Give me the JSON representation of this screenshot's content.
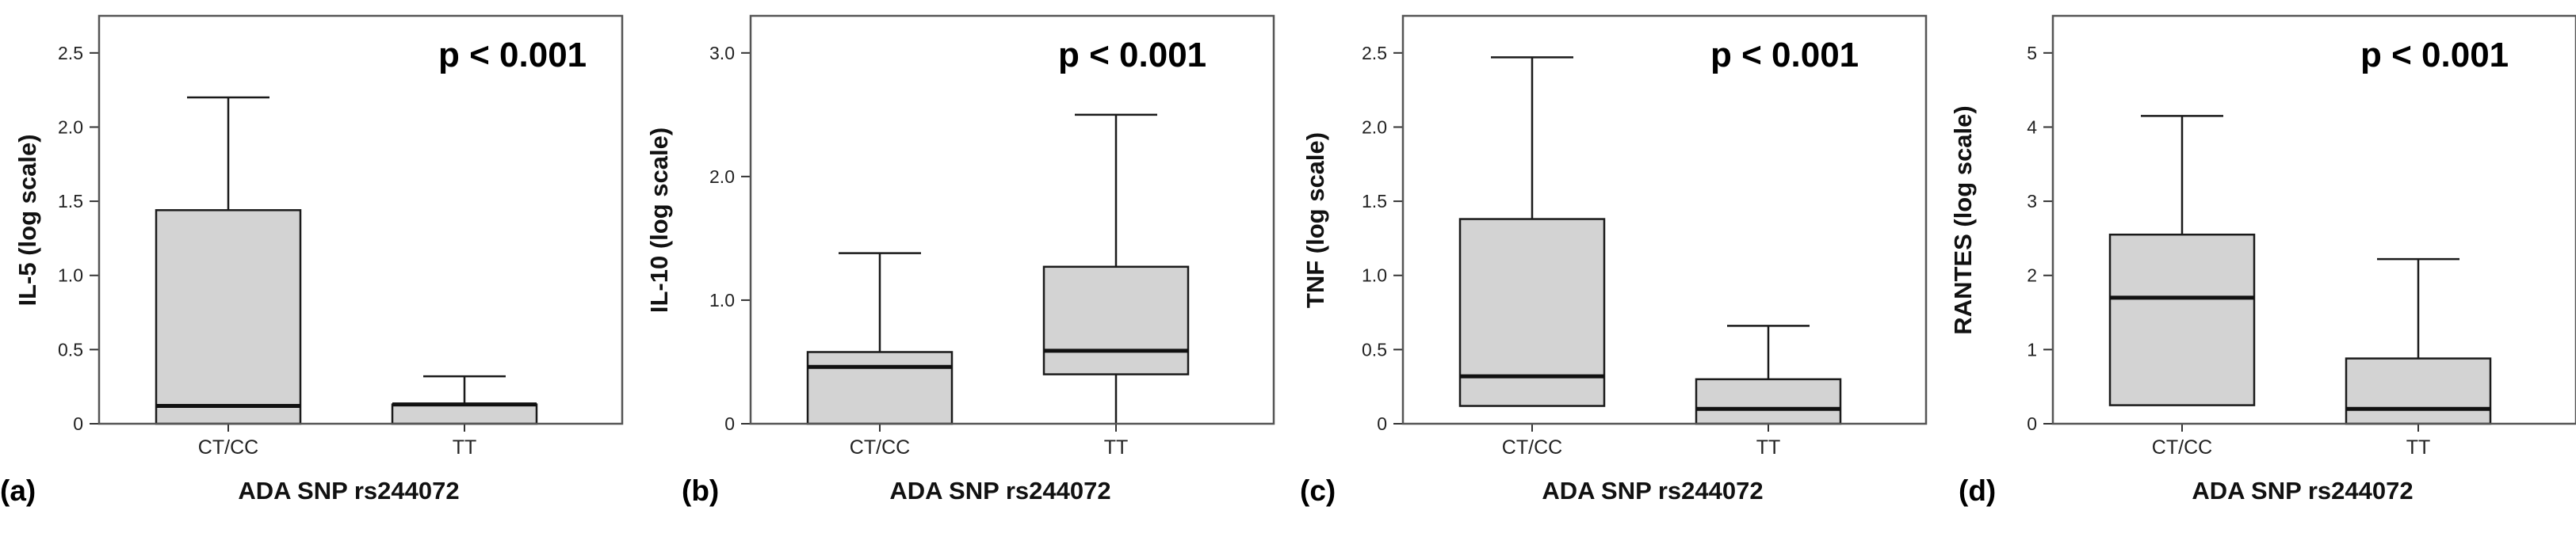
{
  "chart_data": [
    {
      "type": "boxplot",
      "panel_label": "(a)",
      "annotation": "p < 0.001",
      "xlabel": "ADA SNP rs244072",
      "ylabel": "IL-5 (log scale)",
      "ylim": [
        0,
        2.75
      ],
      "yticks": [
        0,
        0.5,
        1.0,
        1.5,
        2.0,
        2.5
      ],
      "ytick_labels": [
        "0",
        "0.5",
        "1.0",
        "1.5",
        "2.0",
        "2.5"
      ],
      "categories": [
        "CT/CC",
        "TT"
      ],
      "boxes": [
        {
          "category": "CT/CC",
          "min": 0,
          "q1": 0,
          "median": 0.12,
          "q3": 1.44,
          "max": 2.2
        },
        {
          "category": "TT",
          "min": 0,
          "q1": 0,
          "median": 0.13,
          "q3": 0.13,
          "max": 0.32
        }
      ]
    },
    {
      "type": "boxplot",
      "panel_label": "(b)",
      "annotation": "p < 0.001",
      "xlabel": "ADA SNP rs244072",
      "ylabel": "IL-10 (log scale)",
      "ylim": [
        0,
        3.3
      ],
      "yticks": [
        0,
        1.0,
        2.0,
        3.0
      ],
      "ytick_labels": [
        "0",
        "1.0",
        "2.0",
        "3.0"
      ],
      "categories": [
        "CT/CC",
        "TT"
      ],
      "boxes": [
        {
          "category": "CT/CC",
          "min": 0,
          "q1": 0,
          "median": 0.46,
          "q3": 0.58,
          "max": 1.38
        },
        {
          "category": "TT",
          "min": 0,
          "q1": 0.4,
          "median": 0.59,
          "q3": 1.27,
          "max": 2.5
        }
      ]
    },
    {
      "type": "boxplot",
      "panel_label": "(c)",
      "annotation": "p < 0.001",
      "xlabel": "ADA SNP rs244072",
      "ylabel": "TNF (log scale)",
      "ylim": [
        0,
        2.75
      ],
      "yticks": [
        0,
        0.5,
        1.0,
        1.5,
        2.0,
        2.5
      ],
      "ytick_labels": [
        "0",
        "0.5",
        "1.0",
        "1.5",
        "2.0",
        "2.5"
      ],
      "categories": [
        "CT/CC",
        "TT"
      ],
      "boxes": [
        {
          "category": "CT/CC",
          "min": 0.12,
          "q1": 0.12,
          "median": 0.32,
          "q3": 1.38,
          "max": 2.47
        },
        {
          "category": "TT",
          "min": 0,
          "q1": 0,
          "median": 0.1,
          "q3": 0.3,
          "max": 0.66
        }
      ]
    },
    {
      "type": "boxplot",
      "panel_label": "(d)",
      "annotation": "p < 0.001",
      "xlabel": "ADA SNP rs244072",
      "ylabel": "RANTES (log scale)",
      "ylim": [
        0,
        5.5
      ],
      "yticks": [
        0,
        1,
        2,
        3,
        4,
        5
      ],
      "ytick_labels": [
        "0",
        "1",
        "2",
        "3",
        "4",
        "5"
      ],
      "categories": [
        "CT/CC",
        "TT"
      ],
      "boxes": [
        {
          "category": "CT/CC",
          "min": 0.25,
          "q1": 0.25,
          "median": 1.7,
          "q3": 2.55,
          "max": 4.15
        },
        {
          "category": "TT",
          "min": 0,
          "q1": 0,
          "median": 0.2,
          "q3": 0.88,
          "max": 2.22
        }
      ]
    }
  ]
}
